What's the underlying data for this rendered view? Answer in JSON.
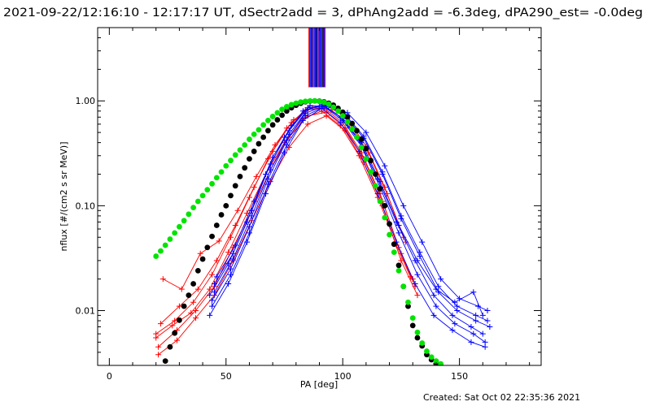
{
  "chart_data": {
    "type": "line",
    "title": "2021-09-22/12:16:10 - 12:17:17 UT, dSectr2add = 3, dPhAng2add = -6.3deg, dPA290_est= -0.0deg",
    "xlabel": "PA [deg]",
    "ylabel": "nflux [#/(cm2 s sr MeV)]",
    "footer": "Created: Sat Oct 02 22:35:36 2021",
    "xlim": [
      -5,
      185
    ],
    "ylim": [
      0.003,
      5.0
    ],
    "yscale": "log",
    "xticks": [
      0,
      50,
      100,
      150
    ],
    "xtick_labels": [
      "0",
      "50",
      "100",
      "150"
    ],
    "yticks": [
      0.01,
      0.1,
      1.0
    ],
    "ytick_labels": [
      "0.01",
      "0.10",
      "1.00"
    ],
    "grid": false,
    "series": [
      {
        "color": "#ff0000",
        "style": "line-plus",
        "curves": [
          {
            "x": [
              20,
              28,
              36,
              44,
              52,
              60,
              68,
              76,
              84,
              92,
              100,
              108,
              116,
              124,
              130
            ],
            "y": [
              0.006,
              0.008,
              0.012,
              0.022,
              0.05,
              0.12,
              0.28,
              0.55,
              0.82,
              0.85,
              0.62,
              0.32,
              0.13,
              0.04,
              0.02
            ]
          },
          {
            "x": [
              21,
              29,
              37,
              45,
              53,
              61,
              69,
              77,
              85,
              93,
              101,
              109,
              117,
              125,
              131
            ],
            "y": [
              0.0045,
              0.0065,
              0.01,
              0.017,
              0.04,
              0.09,
              0.22,
              0.45,
              0.72,
              0.78,
              0.55,
              0.28,
              0.11,
              0.035,
              0.017
            ]
          },
          {
            "x": [
              22,
              30,
              38,
              46,
              54,
              62,
              70,
              78,
              86,
              94,
              102,
              110,
              118,
              126
            ],
            "y": [
              0.0075,
              0.011,
              0.016,
              0.03,
              0.065,
              0.15,
              0.33,
              0.62,
              0.9,
              0.88,
              0.68,
              0.37,
              0.15,
              0.05
            ]
          },
          {
            "x": [
              20,
              27,
              35,
              43,
              51,
              59,
              67,
              75,
              83,
              91,
              99,
              107,
              115,
              123,
              129
            ],
            "y": [
              0.0055,
              0.0072,
              0.0095,
              0.016,
              0.036,
              0.085,
              0.2,
              0.4,
              0.68,
              0.8,
              0.58,
              0.3,
              0.12,
              0.042,
              0.021
            ]
          },
          {
            "x": [
              23,
              31,
              39,
              47,
              55,
              63,
              71,
              79,
              87,
              95,
              103,
              111,
              119,
              127
            ],
            "y": [
              0.02,
              0.016,
              0.035,
              0.046,
              0.09,
              0.19,
              0.38,
              0.66,
              0.86,
              0.82,
              0.6,
              0.32,
              0.13,
              0.045
            ]
          },
          {
            "x": [
              21,
              29,
              37,
              45,
              53,
              61,
              69,
              77,
              85,
              93,
              101,
              109,
              117,
              125,
              132
            ],
            "y": [
              0.0038,
              0.0052,
              0.0085,
              0.014,
              0.03,
              0.072,
              0.17,
              0.36,
              0.6,
              0.72,
              0.52,
              0.26,
              0.1,
              0.03,
              0.014
            ]
          }
        ]
      },
      {
        "color": "#0000ff",
        "style": "line-plus",
        "curves": [
          {
            "x": [
              43,
              51,
              59,
              67,
              75,
              83,
              91,
              99,
              107,
              115,
              123,
              131,
              139,
              147,
              155,
              160
            ],
            "y": [
              0.014,
              0.028,
              0.07,
              0.2,
              0.45,
              0.8,
              0.92,
              0.7,
              0.42,
              0.18,
              0.07,
              0.03,
              0.014,
              0.009,
              0.007,
              0.006
            ]
          },
          {
            "x": [
              44,
              52,
              60,
              68,
              76,
              84,
              92,
              100,
              108,
              116,
              124,
              132,
              140,
              148,
              156,
              161
            ],
            "y": [
              0.011,
              0.022,
              0.055,
              0.16,
              0.38,
              0.72,
              0.88,
              0.65,
              0.37,
              0.15,
              0.055,
              0.022,
              0.011,
              0.0075,
              0.006,
              0.005
            ]
          },
          {
            "x": [
              45,
              53,
              61,
              69,
              77,
              85,
              93,
              101,
              109,
              117,
              125,
              133,
              141,
              149,
              157,
              162
            ],
            "y": [
              0.018,
              0.035,
              0.09,
              0.25,
              0.52,
              0.86,
              0.9,
              0.74,
              0.46,
              0.21,
              0.08,
              0.036,
              0.017,
              0.011,
              0.009,
              0.008
            ]
          },
          {
            "x": [
              43,
              51,
              59,
              67,
              75,
              83,
              91,
              99,
              107,
              115,
              123,
              131,
              139,
              147,
              155,
              161
            ],
            "y": [
              0.009,
              0.018,
              0.045,
              0.13,
              0.32,
              0.65,
              0.85,
              0.62,
              0.33,
              0.13,
              0.045,
              0.018,
              0.009,
              0.0065,
              0.005,
              0.0045
            ]
          },
          {
            "x": [
              46,
              54,
              62,
              70,
              78,
              86,
              94,
              102,
              110,
              118,
              126,
              134,
              142,
              150,
              158,
              162
            ],
            "y": [
              0.021,
              0.042,
              0.11,
              0.29,
              0.58,
              0.9,
              0.88,
              0.77,
              0.5,
              0.24,
              0.1,
              0.045,
              0.02,
              0.013,
              0.011,
              0.01
            ]
          },
          {
            "x": [
              44,
              52,
              60,
              68,
              76,
              84,
              92,
              100,
              108,
              116,
              124,
              132,
              140,
              148,
              156,
              160
            ],
            "y": [
              0.0125,
              0.025,
              0.063,
              0.18,
              0.42,
              0.76,
              0.9,
              0.68,
              0.4,
              0.17,
              0.065,
              0.03,
              0.016,
              0.012,
              0.015,
              0.009
            ]
          },
          {
            "x": [
              45,
              53,
              61,
              69,
              77,
              85,
              93,
              101,
              109,
              117,
              125,
              133,
              141,
              149,
              157,
              163
            ],
            "y": [
              0.015,
              0.031,
              0.08,
              0.22,
              0.48,
              0.83,
              0.91,
              0.72,
              0.44,
              0.2,
              0.075,
              0.033,
              0.015,
              0.01,
              0.008,
              0.007
            ]
          }
        ]
      },
      {
        "color": "#000000",
        "style": "dots",
        "curves": [
          {
            "x": [
              24,
              26,
              28,
              30,
              32,
              34,
              36,
              38,
              40,
              42,
              44,
              46,
              48,
              50,
              52,
              54,
              56,
              58,
              60,
              62,
              64,
              66,
              68,
              70,
              72,
              74,
              76,
              78,
              80,
              82,
              84,
              86,
              88,
              90,
              92,
              94,
              96,
              98,
              100,
              102,
              104,
              106,
              108,
              110,
              112,
              114,
              116,
              118,
              120,
              122,
              124,
              126,
              128,
              130,
              132,
              134,
              136,
              138,
              140
            ],
            "y": [
              0.0033,
              0.0045,
              0.0061,
              0.0081,
              0.011,
              0.014,
              0.018,
              0.024,
              0.031,
              0.04,
              0.051,
              0.065,
              0.082,
              0.1,
              0.125,
              0.155,
              0.19,
              0.23,
              0.28,
              0.33,
              0.39,
              0.45,
              0.52,
              0.59,
              0.66,
              0.73,
              0.8,
              0.86,
              0.91,
              0.95,
              0.98,
              0.995,
              1.0,
              0.995,
              0.98,
              0.95,
              0.91,
              0.85,
              0.78,
              0.7,
              0.61,
              0.52,
              0.43,
              0.35,
              0.27,
              0.2,
              0.145,
              0.1,
              0.067,
              0.043,
              0.027,
              0.017,
              0.011,
              0.0072,
              0.0055,
              0.0046,
              0.0038,
              0.0034,
              0.0031
            ]
          }
        ]
      },
      {
        "color": "#00e400",
        "style": "dots",
        "curves": [
          {
            "x": [
              20,
              22,
              24,
              26,
              28,
              30,
              32,
              34,
              36,
              38,
              40,
              42,
              44,
              46,
              48,
              50,
              52,
              54,
              56,
              58,
              60,
              62,
              64,
              66,
              68,
              70,
              72,
              74,
              76,
              78,
              80,
              82,
              84,
              86,
              88,
              90,
              92,
              94,
              96,
              98,
              100,
              102,
              104,
              106,
              108,
              110,
              112,
              114,
              116,
              118,
              120,
              122,
              124,
              126,
              128,
              130,
              132,
              134,
              136,
              138,
              140,
              142
            ],
            "y": [
              0.033,
              0.037,
              0.042,
              0.048,
              0.055,
              0.063,
              0.072,
              0.083,
              0.096,
              0.11,
              0.125,
              0.142,
              0.162,
              0.185,
              0.21,
              0.24,
              0.27,
              0.305,
              0.34,
              0.38,
              0.43,
              0.48,
              0.53,
              0.59,
              0.65,
              0.71,
              0.77,
              0.83,
              0.88,
              0.92,
              0.95,
              0.975,
              0.99,
              0.998,
              1.0,
              0.99,
              0.97,
              0.93,
              0.87,
              0.8,
              0.72,
              0.63,
              0.54,
              0.45,
              0.36,
              0.28,
              0.21,
              0.155,
              0.11,
              0.077,
              0.053,
              0.036,
              0.024,
              0.017,
              0.012,
              0.0085,
              0.0062,
              0.0049,
              0.0041,
              0.0036,
              0.0033,
              0.0031
            ]
          }
        ]
      }
    ],
    "vertical_lines": {
      "x_range": [
        85.5,
        92.5
      ],
      "colors": [
        "#ff0000",
        "#0000ff",
        "#000000"
      ]
    }
  }
}
